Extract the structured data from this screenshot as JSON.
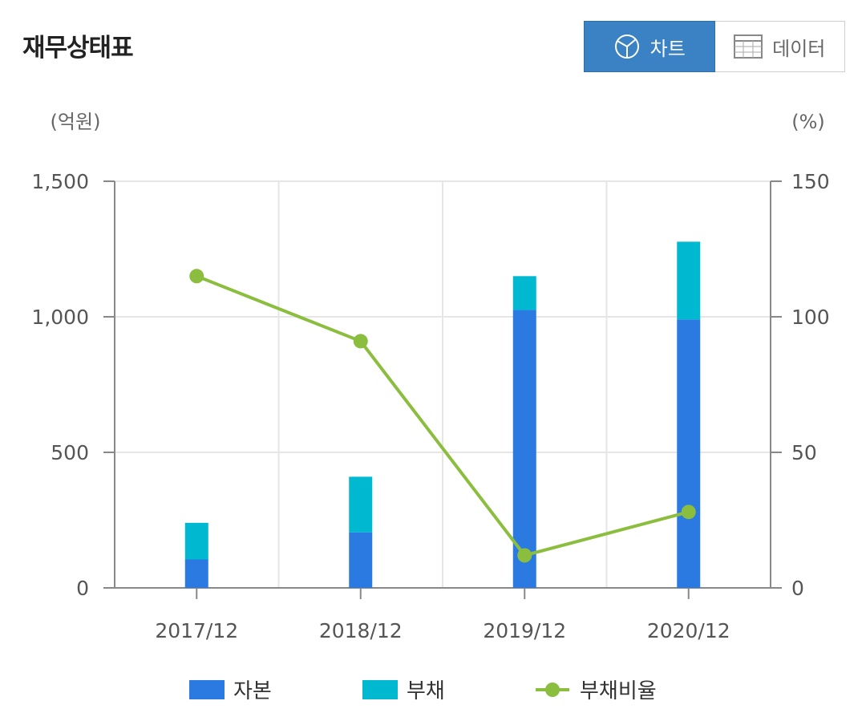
{
  "header": {
    "title": "재무상태표"
  },
  "toggle": {
    "chart_label": "차트",
    "data_label": "데이터",
    "chart_icon": "pie-chart-icon",
    "data_icon": "table-grid-icon"
  },
  "units": {
    "left": "(억원)",
    "right": "(%)"
  },
  "colors": {
    "capital": "#2a7ae2",
    "debt": "#00b9d1",
    "ratio": "#8bbd3e",
    "active_toggle": "#3b82c4"
  },
  "chart_data": {
    "type": "bar",
    "stacked": true,
    "categories": [
      "2017/12",
      "2018/12",
      "2019/12",
      "2020/12"
    ],
    "series": [
      {
        "name": "자본",
        "type": "bar",
        "axis": "left",
        "values": [
          105,
          205,
          1025,
          990
        ]
      },
      {
        "name": "부채",
        "type": "bar",
        "axis": "left",
        "values": [
          135,
          205,
          125,
          287
        ]
      },
      {
        "name": "부채비율",
        "type": "line",
        "axis": "right",
        "values": [
          115,
          91,
          12,
          28
        ]
      }
    ],
    "y_left": {
      "range": [
        0,
        1500
      ],
      "ticks": [
        0,
        500,
        1000,
        1500
      ],
      "tick_labels": [
        "0",
        "500",
        "1,000",
        "1,500"
      ]
    },
    "y_right": {
      "range": [
        0,
        150
      ],
      "ticks": [
        0,
        50,
        100,
        150
      ],
      "tick_labels": [
        "0",
        "50",
        "100",
        "150"
      ]
    },
    "grid": true,
    "legend_position": "bottom"
  }
}
